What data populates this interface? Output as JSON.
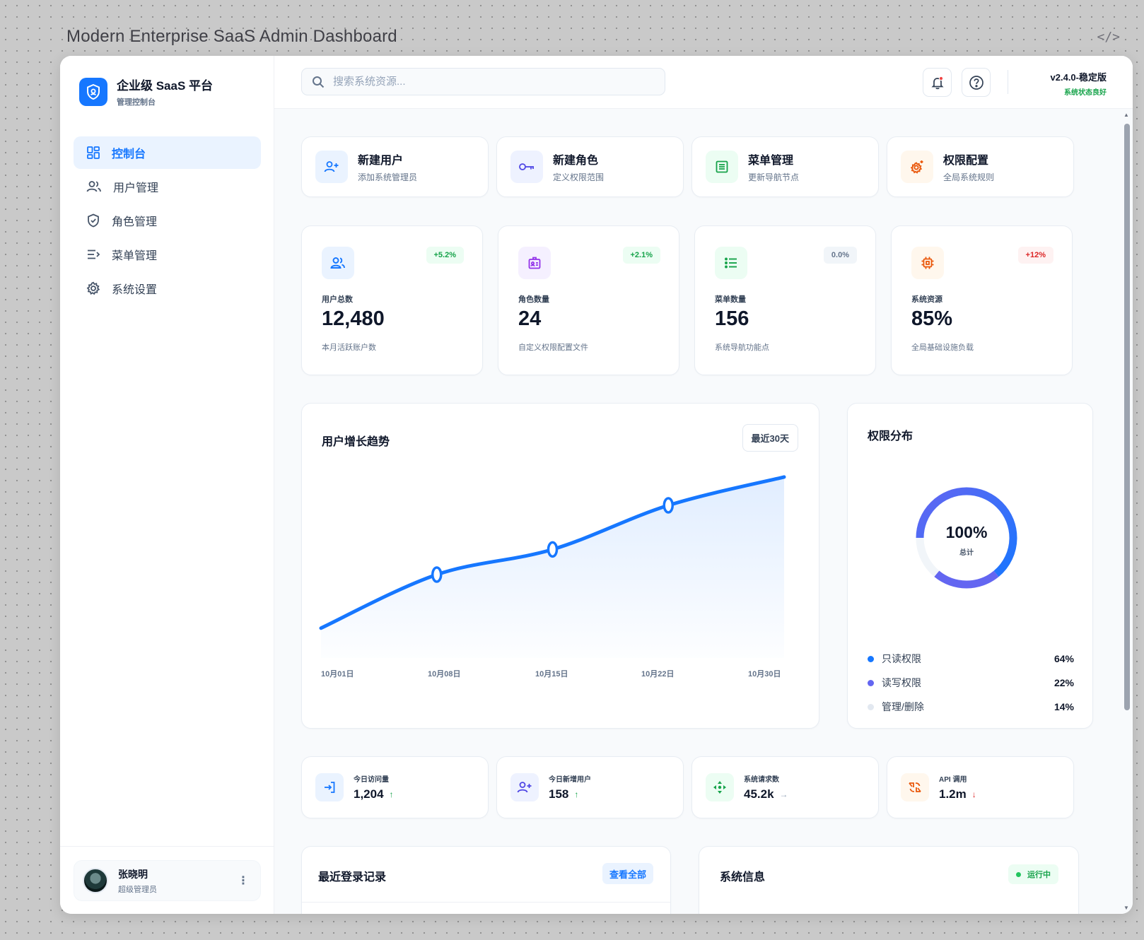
{
  "caption": "Modern Enterprise SaaS Admin Dashboard",
  "brand": {
    "title": "企业级 SaaS 平台",
    "subtitle": "管理控制台"
  },
  "nav": [
    {
      "label": "控制台",
      "icon": "dashboard-icon",
      "active": true
    },
    {
      "label": "用户管理",
      "icon": "users-icon"
    },
    {
      "label": "角色管理",
      "icon": "shield-icon"
    },
    {
      "label": "菜单管理",
      "icon": "menu-icon"
    },
    {
      "label": "系统设置",
      "icon": "gear-icon"
    }
  ],
  "user": {
    "name": "张晓明",
    "role": "超级管理员"
  },
  "search": {
    "placeholder": "搜索系统资源..."
  },
  "version": {
    "number": "v2.4.0-稳定版",
    "status": "系统状态良好"
  },
  "quick_actions": [
    {
      "title": "新建用户",
      "subtitle": "添加系统管理员",
      "icon": "user-plus-icon",
      "color": "#1677ff",
      "bg": "#eaf3ff"
    },
    {
      "title": "新建角色",
      "subtitle": "定义权限范围",
      "icon": "key-icon",
      "color": "#4f46e5",
      "bg": "#eef2ff"
    },
    {
      "title": "菜单管理",
      "subtitle": "更新导航节点",
      "icon": "table-icon",
      "color": "#16a34a",
      "bg": "#ecfdf3"
    },
    {
      "title": "权限配置",
      "subtitle": "全局系统规则",
      "icon": "gear-icon",
      "color": "#ea580c",
      "bg": "#fff7ed"
    }
  ],
  "stats": [
    {
      "label": "用户总数",
      "value": "12,480",
      "sub": "本月活跃账户数",
      "badge": "+5.2%",
      "trend": "up",
      "icon": "users-icon",
      "color": "#1677ff",
      "bg": "#eaf3ff"
    },
    {
      "label": "角色数量",
      "value": "24",
      "sub": "自定义权限配置文件",
      "badge": "+2.1%",
      "trend": "up",
      "icon": "id-badge-icon",
      "color": "#9333ea",
      "bg": "#f5f0ff"
    },
    {
      "label": "菜单数量",
      "value": "156",
      "sub": "系统导航功能点",
      "badge": "0.0%",
      "trend": "flat",
      "icon": "list-icon",
      "color": "#16a34a",
      "bg": "#ecfdf3"
    },
    {
      "label": "系统资源",
      "value": "85%",
      "sub": "全局基础设施负载",
      "badge": "+12%",
      "trend": "down",
      "icon": "cpu-icon",
      "color": "#ea580c",
      "bg": "#fff7ed"
    }
  ],
  "growth": {
    "title": "用户增长趋势",
    "range": "最近30天"
  },
  "chart_data": [
    {
      "type": "area",
      "title": "用户增长趋势",
      "x": [
        "10月01日",
        "10月08日",
        "10月15日",
        "10月22日",
        "10月30日"
      ],
      "series": [
        {
          "values": [
            10,
            44,
            60,
            88,
            106
          ]
        }
      ],
      "grid": false,
      "color": "#1677ff"
    },
    {
      "type": "pie",
      "title": "权限分布",
      "center_value": "100%",
      "center_label": "总计",
      "categories": [
        "只读权限",
        "读写权限",
        "管理/删除"
      ],
      "values": [
        64,
        22,
        14
      ],
      "colors": [
        "#1677ff",
        "#6366f1",
        "#e2e8f0"
      ]
    }
  ],
  "permissions": {
    "title": "权限分布",
    "center_value": "100%",
    "center_label": "总计",
    "legend": [
      {
        "label": "只读权限",
        "value": "64%",
        "color": "#1677ff"
      },
      {
        "label": "读写权限",
        "value": "22%",
        "color": "#6366f1"
      },
      {
        "label": "管理/删除",
        "value": "14%",
        "color": "#e2e8f0"
      }
    ]
  },
  "mini_stats": [
    {
      "label": "今日访问量",
      "value": "1,204",
      "trend": "↑",
      "trend_color": "#16a34a",
      "icon": "login-icon",
      "color": "#1677ff",
      "bg": "#eaf3ff"
    },
    {
      "label": "今日新增用户",
      "value": "158",
      "trend": "↑",
      "trend_color": "#16a34a",
      "icon": "user-plus-icon",
      "color": "#4f46e5",
      "bg": "#eef2ff"
    },
    {
      "label": "系统请求数",
      "value": "45.2k",
      "trend": "→",
      "trend_color": "#94a3b8",
      "icon": "network-icon",
      "color": "#16a34a",
      "bg": "#ecfdf3"
    },
    {
      "label": "API 调用",
      "value": "1.2m",
      "trend": "↓",
      "trend_color": "#dc2626",
      "icon": "api-icon",
      "color": "#ea580c",
      "bg": "#fff7ed"
    }
  ],
  "recent_logins": {
    "title": "最近登录记录",
    "action": "查看全部"
  },
  "system_info": {
    "title": "系统信息",
    "status": "运行中"
  }
}
